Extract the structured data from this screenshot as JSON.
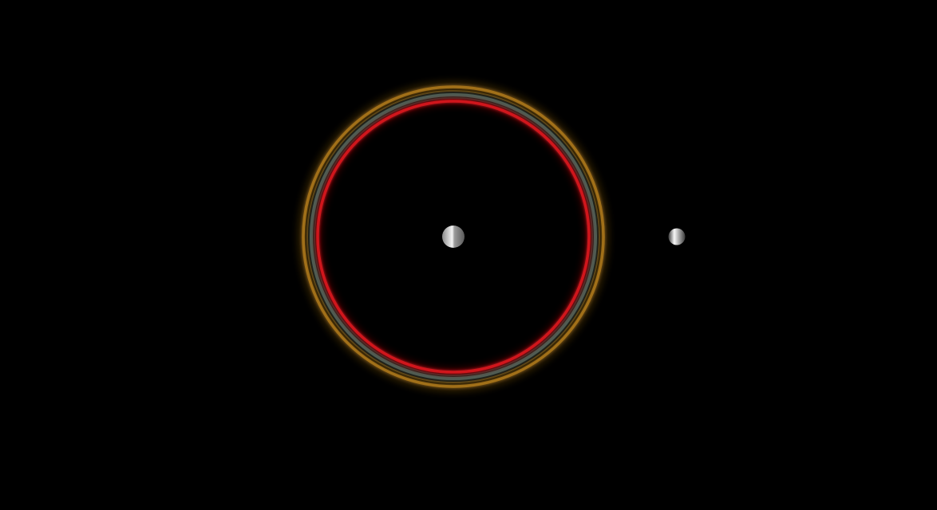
{
  "scene": {
    "background": "#000000",
    "rings": [
      {
        "name": "ring-outer-gold",
        "color": "#b07a1c"
      },
      {
        "name": "ring-middle-teal",
        "color": "#4f6b5e"
      },
      {
        "name": "ring-inner-red",
        "color": "#d0141e"
      }
    ],
    "bodies": [
      {
        "name": "central-sphere",
        "color": "#e6e6e6",
        "shade": "#6a6a6a"
      },
      {
        "name": "satellite-sphere",
        "color": "#f2f2f2",
        "shade": "#4a4a4a"
      }
    ]
  }
}
